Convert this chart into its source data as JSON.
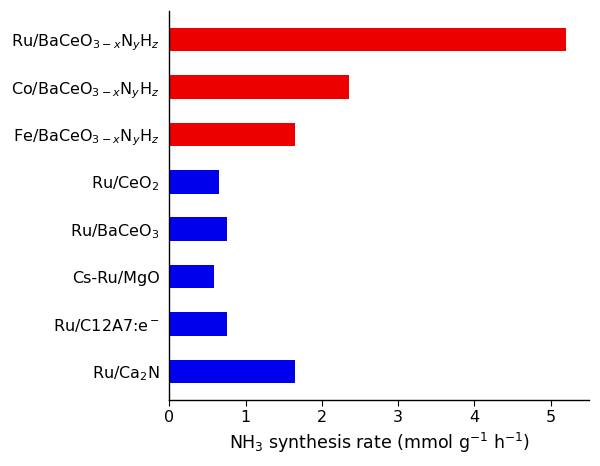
{
  "categories": [
    "Ru/Ca$_2$N",
    "Ru/C12A7:e$^-$",
    "Cs-Ru/MgO",
    "Ru/BaCeO$_3$",
    "Ru/CeO$_2$",
    "Fe/BaCeO$_{3-x}$N$_y$H$_z$",
    "Co/BaCeO$_{3-x}$N$_y$H$_z$",
    "Ru/BaCeO$_{3-x}$N$_y$H$_z$"
  ],
  "values": [
    1.65,
    0.75,
    0.58,
    0.75,
    0.65,
    1.65,
    2.35,
    5.2
  ],
  "colors": [
    "#0000ee",
    "#0000ee",
    "#0000ee",
    "#0000ee",
    "#0000ee",
    "#ee0000",
    "#ee0000",
    "#ee0000"
  ],
  "xlabel": "NH$_3$ synthesis rate (mmol g$^{-1}$ h$^{-1}$)",
  "xlim": [
    0,
    5.5
  ],
  "xticks": [
    0,
    1,
    2,
    3,
    4,
    5
  ],
  "bar_height": 0.5,
  "figsize": [
    6.0,
    4.66
  ],
  "dpi": 100
}
